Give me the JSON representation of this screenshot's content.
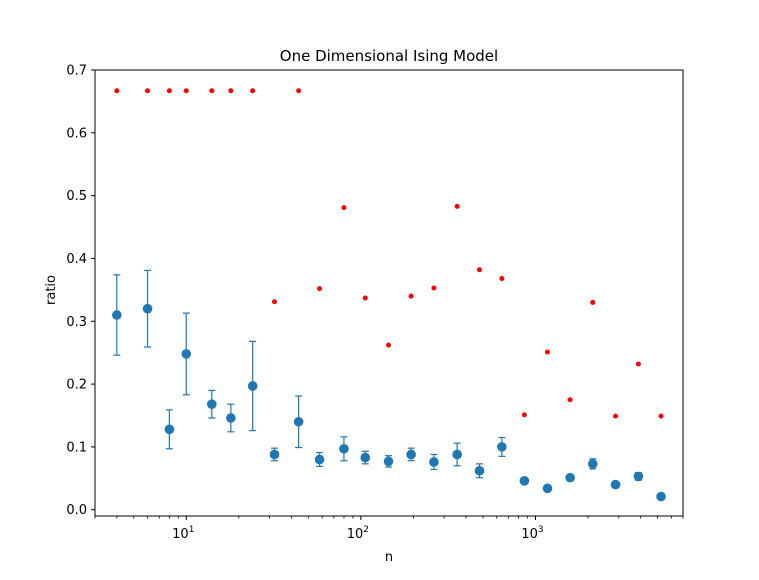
{
  "chart_data": {
    "type": "scatter",
    "title": "One Dimensional Ising Model",
    "xlabel": "n",
    "ylabel": "ratio",
    "xscale": "log",
    "xlim": [
      3,
      7000
    ],
    "ylim": [
      -0.01,
      0.7
    ],
    "x_ticks": [
      {
        "value": 10,
        "base": "10",
        "exp": "1"
      },
      {
        "value": 100,
        "base": "10",
        "exp": "2"
      },
      {
        "value": 1000,
        "base": "10",
        "exp": "3"
      }
    ],
    "y_ticks": [
      "0.0",
      "0.1",
      "0.2",
      "0.3",
      "0.4",
      "0.5",
      "0.6",
      "0.7"
    ],
    "grid": false,
    "legend": "none",
    "series": [
      {
        "marker": "dot",
        "color": "#ff0000",
        "x": [
          4,
          6,
          8,
          10,
          14,
          18,
          24,
          32,
          44,
          58,
          80,
          106,
          144,
          194,
          262,
          356,
          478,
          642,
          864,
          1172,
          1580,
          2130,
          2876,
          3888,
          5240
        ],
        "y": [
          0.667,
          0.667,
          0.667,
          0.667,
          0.667,
          0.667,
          0.667,
          0.331,
          0.667,
          0.352,
          0.481,
          0.337,
          0.262,
          0.34,
          0.353,
          0.483,
          0.382,
          0.368,
          0.151,
          0.251,
          0.175,
          0.33,
          0.149,
          0.232,
          0.149
        ]
      },
      {
        "marker": "circle",
        "color": "#1f77b4",
        "x": [
          4,
          6,
          8,
          10,
          14,
          18,
          24,
          32,
          44,
          58,
          80,
          106,
          144,
          194,
          262,
          356,
          478,
          642,
          864,
          1172,
          1580,
          2130,
          2876,
          3888,
          5240
        ],
        "y": [
          0.31,
          0.32,
          0.128,
          0.248,
          0.168,
          0.146,
          0.197,
          0.088,
          0.14,
          0.08,
          0.097,
          0.083,
          0.077,
          0.088,
          0.076,
          0.088,
          0.062,
          0.1,
          0.046,
          0.034,
          0.051,
          0.073,
          0.04,
          0.053,
          0.021
        ],
        "yerr": [
          0.064,
          0.061,
          0.031,
          0.065,
          0.022,
          0.022,
          0.071,
          0.01,
          0.041,
          0.011,
          0.019,
          0.01,
          0.009,
          0.01,
          0.012,
          0.018,
          0.011,
          0.015,
          0.004,
          0.003,
          0.004,
          0.008,
          0.004,
          0.006,
          0.003
        ]
      }
    ]
  }
}
